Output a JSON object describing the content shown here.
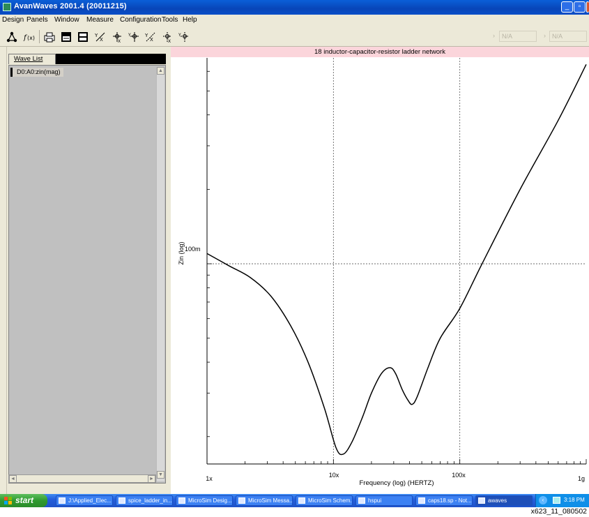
{
  "window": {
    "title": "AvanWaves 2001.4  (20011215)",
    "min": "_",
    "max": "▫",
    "close": "x"
  },
  "menu": [
    "Design",
    "Panels",
    "Window",
    "Measure",
    "Configuration",
    "Tools",
    "Help"
  ],
  "toolbar": {
    "icons": [
      "tree-icon",
      "function-icon",
      "print-icon",
      "panel-icon",
      "panel-split-icon",
      "cursor-xy-icon",
      "cursor-x-icon",
      "cursor-y-icon",
      "cursor-xy2-icon",
      "cursor-x2-icon",
      "cursor-y2-icon"
    ],
    "field1": "N/A",
    "field2": "N/A"
  },
  "wave_list": {
    "tab_label": "Wave List",
    "items": [
      "D0:A0:zin(mag)"
    ]
  },
  "plot": {
    "title": "18 inductor-capacitor-resistor ladder network",
    "y_axis_label": "Zin (log)",
    "x_axis_label": "Frequency (log) (HERTZ)",
    "x_ticks": [
      "1x",
      "10x",
      "100x",
      "1g"
    ],
    "y_ticks": [
      "100m"
    ]
  },
  "chart_data": {
    "type": "line",
    "title": "18 inductor-capacitor-resistor ladder network",
    "xlabel": "Frequency (log) (HERTZ)",
    "ylabel": "Zin (log)",
    "x_scale": "log",
    "y_scale": "log",
    "x_tick_labels": [
      "1x",
      "10x",
      "100x",
      "1g"
    ],
    "y_tick_labels": [
      "100m"
    ],
    "grid": "dashed major gridlines at 10x, 100x and 100m",
    "series": [
      {
        "name": "D0:A0:zin(mag)",
        "x": [
          1,
          1.5,
          2.2,
          3.2,
          4.6,
          6.3,
          8.5,
          10.5,
          12,
          14,
          17,
          20,
          24,
          28,
          31,
          35,
          39,
          42,
          46,
          56,
          70,
          100,
          150,
          300,
          600,
          1000
        ],
        "y": [
          0.11,
          0.098,
          0.088,
          0.074,
          0.056,
          0.04,
          0.026,
          0.018,
          0.017,
          0.019,
          0.024,
          0.03,
          0.036,
          0.038,
          0.036,
          0.031,
          0.028,
          0.027,
          0.029,
          0.038,
          0.05,
          0.066,
          0.1,
          0.2,
          0.38,
          0.64
        ]
      }
    ]
  },
  "taskbar": {
    "start": "start",
    "buttons": [
      "J:\\Applied_Elec...",
      "spice_ladder_in...",
      "MicroSim Desig...",
      "MicroSim Messa...",
      "MicroSim Schem...",
      "hspui",
      "caps18.sp - Not...",
      "awaves"
    ],
    "time": "3:18 PM"
  },
  "figure_caption": "x623_11_080502"
}
